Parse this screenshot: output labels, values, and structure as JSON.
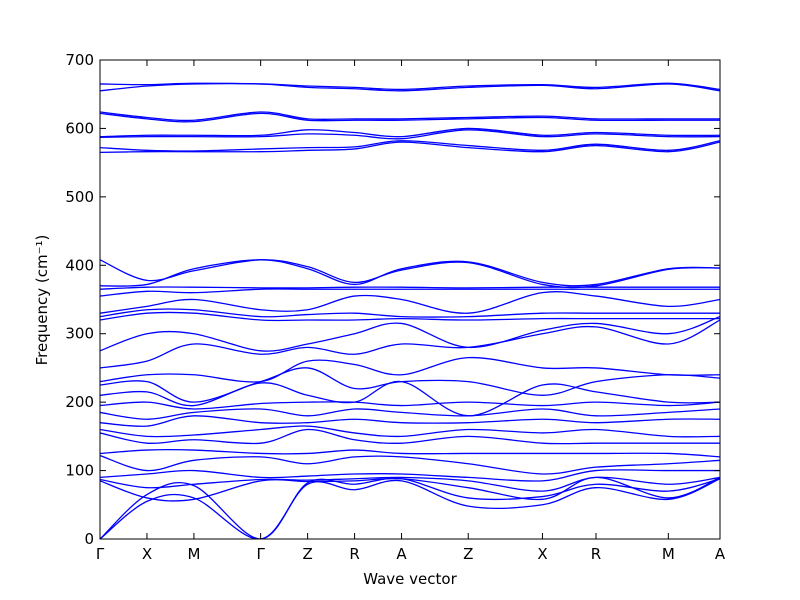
{
  "chart_data": {
    "type": "line",
    "xlabel": "Wave vector",
    "ylabel": "Frequency (cm⁻¹)",
    "ylim": [
      0,
      700
    ],
    "yticks": [
      0,
      100,
      200,
      300,
      400,
      500,
      600,
      700
    ],
    "grid": false,
    "line_color": "#0000ff",
    "x_labels": [
      "Γ",
      "X",
      "M",
      "Γ",
      "Z",
      "R",
      "A",
      "Z",
      "X",
      "R",
      "M",
      "A"
    ],
    "x_positions": [
      0,
      0.5,
      1.0,
      1.71,
      2.21,
      2.71,
      3.21,
      3.92,
      4.71,
      5.28,
      6.05,
      6.6
    ],
    "bands_sampled_at": "high-symmetry points (Γ X M Γ Z R A Z X R M A)",
    "bands": [
      [
        0,
        55,
        60,
        0,
        80,
        72,
        85,
        48,
        50,
        75,
        58,
        88
      ],
      [
        0,
        65,
        78,
        0,
        82,
        80,
        88,
        60,
        62,
        80,
        70,
        88
      ],
      [
        85,
        60,
        58,
        85,
        84,
        85,
        88,
        75,
        58,
        90,
        60,
        90
      ],
      [
        87,
        75,
        80,
        87,
        86,
        88,
        90,
        85,
        70,
        90,
        80,
        90
      ],
      [
        90,
        95,
        100,
        90,
        92,
        95,
        95,
        90,
        85,
        100,
        100,
        100
      ],
      [
        122,
        100,
        115,
        120,
        110,
        120,
        120,
        110,
        95,
        105,
        110,
        115
      ],
      [
        125,
        130,
        130,
        125,
        125,
        130,
        125,
        125,
        125,
        125,
        125,
        120
      ],
      [
        155,
        140,
        145,
        140,
        160,
        145,
        140,
        150,
        140,
        140,
        140,
        140
      ],
      [
        160,
        150,
        152,
        160,
        165,
        155,
        150,
        160,
        155,
        160,
        150,
        150
      ],
      [
        170,
        165,
        180,
        170,
        170,
        175,
        170,
        170,
        175,
        170,
        175,
        175
      ],
      [
        185,
        175,
        185,
        190,
        180,
        190,
        185,
        180,
        190,
        180,
        185,
        190
      ],
      [
        195,
        200,
        190,
        198,
        200,
        200,
        195,
        200,
        195,
        200,
        195,
        200
      ],
      [
        210,
        215,
        195,
        228,
        210,
        200,
        230,
        180,
        225,
        215,
        200,
        200
      ],
      [
        225,
        230,
        200,
        230,
        250,
        220,
        230,
        230,
        210,
        230,
        240,
        235
      ],
      [
        230,
        240,
        240,
        230,
        260,
        255,
        240,
        265,
        250,
        250,
        240,
        240
      ],
      [
        250,
        260,
        285,
        270,
        280,
        270,
        285,
        280,
        300,
        310,
        285,
        320
      ],
      [
        275,
        300,
        300,
        275,
        285,
        300,
        315,
        280,
        305,
        315,
        300,
        325
      ],
      [
        320,
        330,
        330,
        320,
        320,
        320,
        322,
        320,
        322,
        322,
        322,
        322
      ],
      [
        325,
        335,
        335,
        325,
        328,
        330,
        325,
        325,
        330,
        330,
        330,
        330
      ],
      [
        330,
        340,
        350,
        335,
        335,
        355,
        350,
        330,
        360,
        355,
        340,
        350
      ],
      [
        355,
        362,
        360,
        365,
        365,
        365,
        365,
        365,
        365,
        365,
        365,
        365
      ],
      [
        365,
        368,
        368,
        367,
        367,
        368,
        368,
        367,
        368,
        368,
        368,
        368
      ],
      [
        370,
        372,
        395,
        408,
        395,
        372,
        395,
        405,
        375,
        372,
        395,
        396
      ],
      [
        408,
        378,
        392,
        408,
        398,
        375,
        393,
        404,
        372,
        370,
        394,
        396
      ],
      [
        565,
        566,
        566,
        566,
        568,
        570,
        580,
        572,
        566,
        575,
        566,
        580
      ],
      [
        572,
        568,
        567,
        570,
        572,
        573,
        582,
        575,
        568,
        577,
        568,
        582
      ],
      [
        587,
        588,
        588,
        588,
        592,
        590,
        585,
        598,
        588,
        592,
        588,
        588
      ],
      [
        588,
        590,
        590,
        590,
        598,
        594,
        588,
        600,
        590,
        594,
        590,
        590
      ],
      [
        622,
        614,
        610,
        622,
        612,
        612,
        612,
        614,
        616,
        612,
        612,
        612
      ],
      [
        624,
        616,
        612,
        624,
        614,
        614,
        614,
        616,
        618,
        614,
        614,
        614
      ],
      [
        655,
        662,
        665,
        665,
        660,
        658,
        655,
        660,
        663,
        658,
        665,
        655
      ],
      [
        665,
        664,
        666,
        665,
        662,
        660,
        657,
        662,
        664,
        660,
        666,
        657
      ]
    ]
  }
}
